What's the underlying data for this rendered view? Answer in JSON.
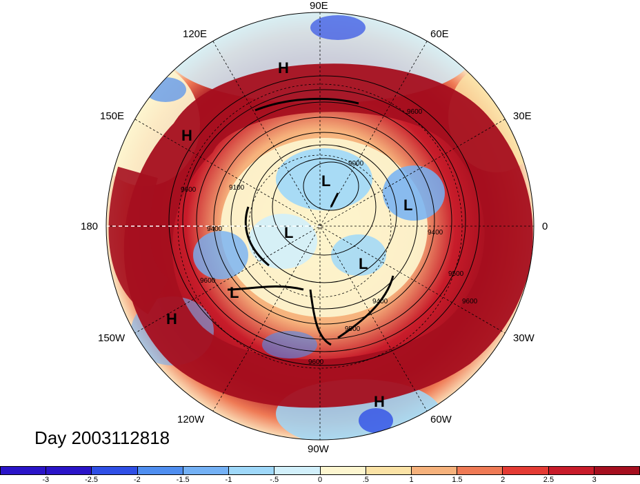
{
  "title": "Day 2003112818",
  "longitude_labels": {
    "e90": "90E",
    "e60": "60E",
    "e30": "30E",
    "zero": "0",
    "w30": "30W",
    "w60": "60W",
    "w90": "90W",
    "w120": "120W",
    "w150": "150W",
    "d180": "180",
    "e150": "150E",
    "e120": "120E"
  },
  "pressure_markers": {
    "high": "H",
    "low": "L"
  },
  "contour_labels": [
    "9000",
    "9100",
    "9400",
    "9500",
    "9600"
  ],
  "colorbar": {
    "ticks": [
      "-3",
      "-2.5",
      "-2",
      "-1.5",
      "-1",
      "-.5",
      "0",
      ".5",
      "1",
      "1.5",
      "2",
      "2.5",
      "3"
    ],
    "colors": [
      "#2a14c8",
      "#2f4fe6",
      "#4f8ef0",
      "#74b1f5",
      "#9fd8f9",
      "#d2f0fb",
      "#fdf6d0",
      "#fbe3a6",
      "#f6b27c",
      "#ef7a55",
      "#e43b34",
      "#c81c2a",
      "#a50f1f"
    ]
  }
}
